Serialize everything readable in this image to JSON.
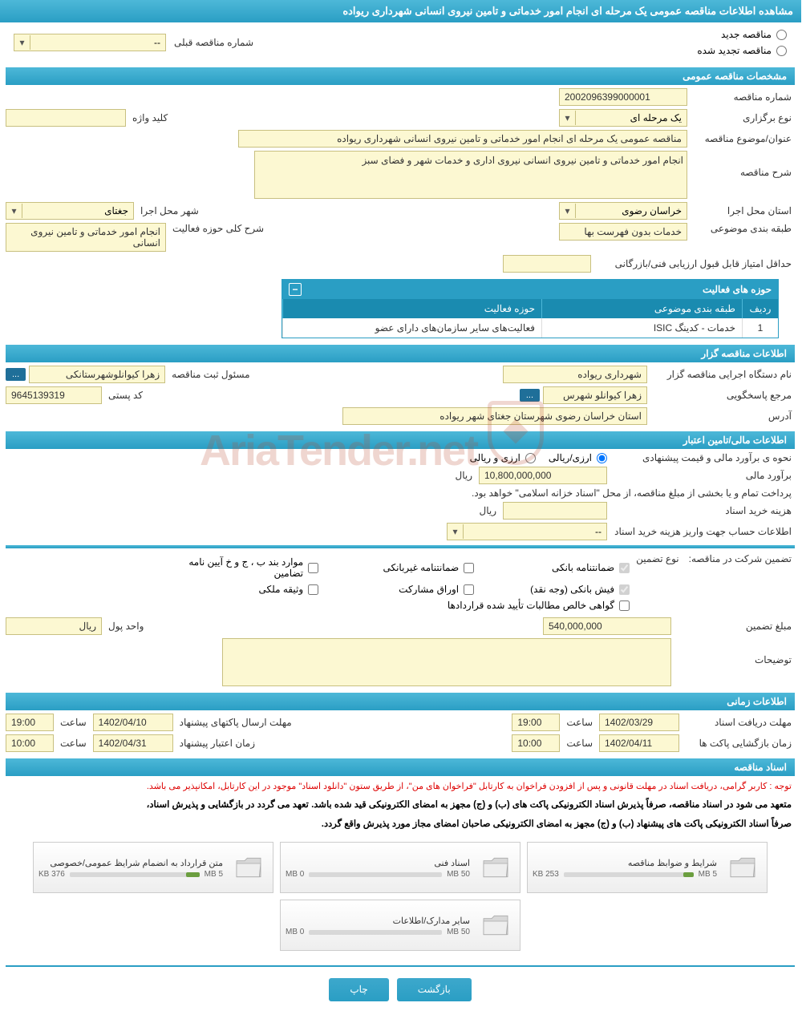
{
  "header": {
    "title": "مشاهده اطلاعات مناقصه عمومی یک مرحله ای انجام امور خدماتی و تامین نیروی انسانی شهرداری ریواده"
  },
  "tender_type": {
    "new_label": "مناقصه جدید",
    "renewed_label": "مناقصه تجدید شده",
    "prev_label": "شماره مناقصه قبلی",
    "prev_value": "--"
  },
  "sections": {
    "general": "مشخصات مناقصه عمومی",
    "organizer": "اطلاعات مناقصه گزار",
    "financial": "اطلاعات مالی/تامین اعتبار",
    "timing": "اطلاعات زمانی",
    "documents": "اسناد مناقصه"
  },
  "general": {
    "tender_no_label": "شماره مناقصه",
    "tender_no": "2002096399000001",
    "holding_type_label": "نوع برگزاری",
    "holding_type": "یک مرحله ای",
    "keyword_label": "کلید واژه",
    "keyword": "",
    "title_label": "عنوان/موضوع مناقصه",
    "title": "مناقصه عمومی یک مرحله ای انجام امور خدماتی و تامین نیروی انسانی شهرداری ریواده",
    "desc_label": "شرح مناقصه",
    "desc": "انجام امور خدماتی و تامین نیروی انسانی نیروی اداری و خدمات شهر و فضای سبز",
    "province_label": "استان محل اجرا",
    "province": "خراسان رضوی",
    "city_label": "شهر محل اجرا",
    "city": "جغتای",
    "category_label": "طبقه بندی موضوعی",
    "category": "خدمات بدون فهرست بها",
    "activity_scope_label": "شرح کلی حوزه فعالیت",
    "activity_scope": "انجام امور خدماتی و تامین نیروی انسانی",
    "min_score_label": "حداقل امتیاز قابل قبول ارزیابی فنی/بازرگانی",
    "min_score": ""
  },
  "activity_table": {
    "title": "حوزه های فعالیت",
    "cols": {
      "idx": "ردیف",
      "category": "طبقه بندی موضوعی",
      "scope": "حوزه فعالیت"
    },
    "rows": [
      {
        "idx": "1",
        "category": "خدمات - کدینگ ISIC",
        "scope": "فعالیت‌های سایر سازمان‌های دارای عضو"
      }
    ]
  },
  "organizer": {
    "org_name_label": "نام دستگاه اجرایی مناقصه گزار",
    "org_name": "شهرداری ریواده",
    "registrar_label": "مسئول ثبت مناقصه",
    "registrar": "زهرا کیوانلوشهرستانکی",
    "dots": "...",
    "responder_label": "مرجع پاسخگویی",
    "responder": "زهرا کیوانلو شهرس",
    "responder_btn": "...",
    "postal_label": "کد پستی",
    "postal": "9645139319",
    "address_label": "آدرس",
    "address": "استان خراسان رضوی شهرستان جغتای شهر ریواده"
  },
  "financial": {
    "estimate_method_label": "نحوه ی برآورد مالی و قیمت پیشنهادی",
    "opt_rial": "ارزی/ریالی",
    "opt_currency": "ارزی و ریالی",
    "estimate_label": "برآورد مالی",
    "estimate": "10,800,000,000",
    "unit_rial": "ریال",
    "treasury_note": "پرداخت تمام و یا بخشی از مبلغ مناقصه، از محل \"اسناد خزانه اسلامی\" خواهد بود.",
    "doc_cost_label": "هزینه خرید اسناد",
    "doc_cost": "",
    "account_info_label": "اطلاعات حساب جهت واریز هزینه خرید اسناد",
    "account_info": "--",
    "guarantee_label": "تضمین شرکت در مناقصه:",
    "guarantee_type_label": "نوع تضمین",
    "chk_bank_guarantee": "ضمانتنامه بانکی",
    "chk_nonbank_guarantee": "ضمانتنامه غیربانکی",
    "chk_regulation": "موارد بند ب ، ج و خ آیین نامه تضامین",
    "chk_bank_receipt": "فیش بانکی (وجه نقد)",
    "chk_bonds": "اوراق مشارکت",
    "chk_property": "وثیقه ملکی",
    "chk_net_claims": "گواهی خالص مطالبات تأیید شده قراردادها",
    "guarantee_amount_label": "مبلغ تضمین",
    "guarantee_amount": "540,000,000",
    "currency_label": "واحد پول",
    "currency": "ریال",
    "notes_label": "توضیحات"
  },
  "timing": {
    "doc_deadline_label": "مهلت دریافت اسناد",
    "doc_deadline_date": "1402/03/29",
    "time_label": "ساعت",
    "doc_deadline_time": "19:00",
    "bid_deadline_label": "مهلت ارسال پاکتهای پیشنهاد",
    "bid_deadline_date": "1402/04/10",
    "bid_deadline_time": "19:00",
    "opening_label": "زمان بازگشایی پاکت ها",
    "opening_date": "1402/04/11",
    "opening_time": "10:00",
    "validity_label": "زمان اعتبار پیشنهاد",
    "validity_date": "1402/04/31",
    "validity_time": "10:00"
  },
  "documents": {
    "red_note": "توجه : کاربر گرامی، دریافت اسناد در مهلت قانونی و پس از افزودن فراخوان به کارتابل \"فراخوان های من\"، از طریق ستون \"دانلود اسناد\" موجود در این کارتابل، امکانپذیر می باشد.",
    "black_note_1": "متعهد می شود در اسناد مناقصه، صرفاً پذیرش اسناد الکترونیکی پاکت های (ب) و (ج) مجهز به امضای الکترونیکی قید شده باشد. تعهد می گردد در بازگشایی و پذیرش اسناد،",
    "black_note_2": "صرفاً اسناد الکترونیکی پاکت های پیشنهاد (ب) و (ج) مجهز به امضای الکترونیکی صاحبان امضای مجاز مورد پذیرش واقع گردد.",
    "files": [
      {
        "title": "شرایط و ضوابظ مناقصه",
        "size": "253 KB",
        "cap": "5 MB",
        "fill_pct": 8
      },
      {
        "title": "اسناد فنی",
        "size": "0 MB",
        "cap": "50 MB",
        "fill_pct": 0
      },
      {
        "title": "متن قرارداد به انضمام شرایظ عمومی/خصوصی",
        "size": "376 KB",
        "cap": "5 MB",
        "fill_pct": 10
      },
      {
        "title": "سایر مدارک/اطلاعات",
        "size": "0 MB",
        "cap": "50 MB",
        "fill_pct": 0
      }
    ]
  },
  "footer": {
    "back": "بازگشت",
    "print": "چاپ"
  },
  "watermark": "AriaTender.net",
  "colors": {
    "bar_top": "#4db8d8",
    "bar_bottom": "#2a9ec4",
    "field_bg": "#fcf8d2",
    "field_border": "#c8c080",
    "red": "#d00000",
    "watermark": "#b94a2f"
  }
}
